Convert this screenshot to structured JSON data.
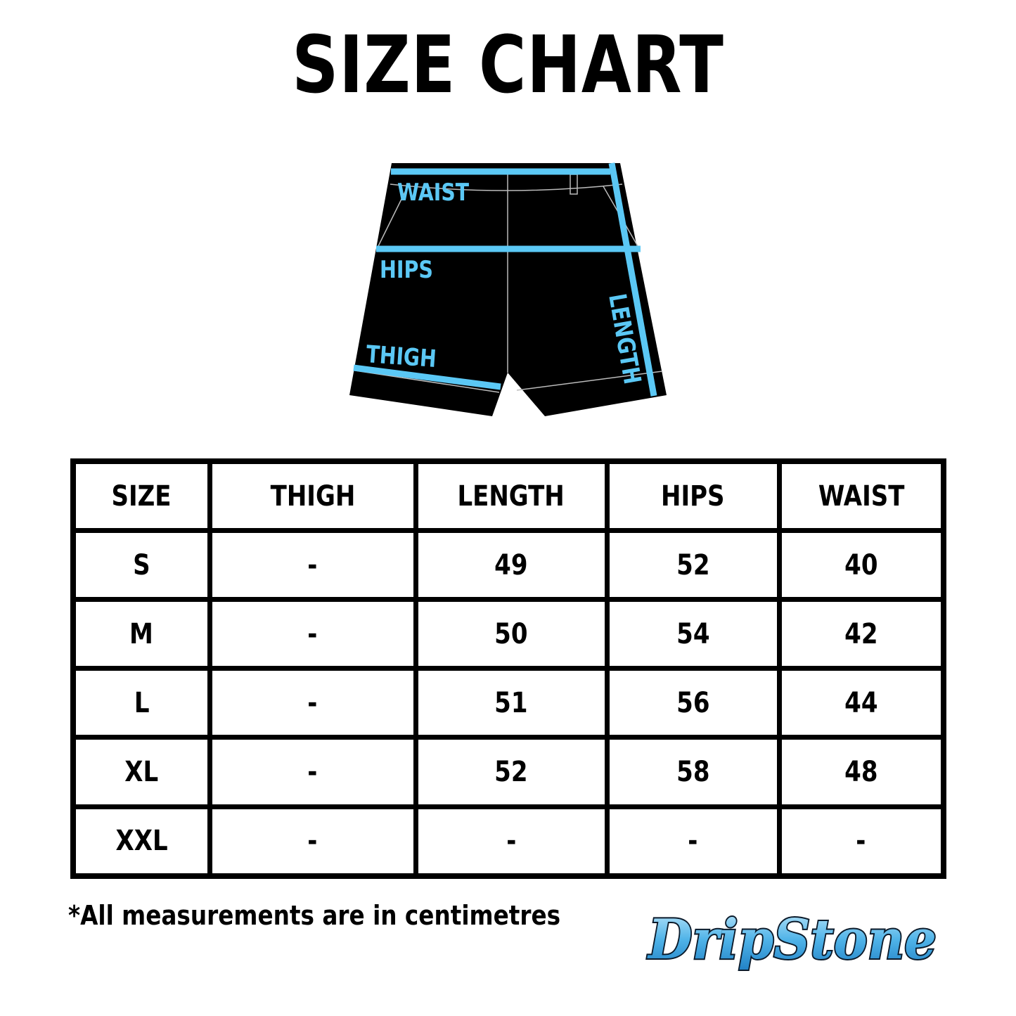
{
  "title": "SIZE CHART",
  "diagram": {
    "labels": {
      "waist": "WAIST",
      "hips": "HIPS",
      "thigh": "THIGH",
      "length": "LENGTH"
    },
    "colors": {
      "garment": "#000000",
      "measure_line": "#5BC8F5"
    }
  },
  "table": {
    "headers": [
      "SIZE",
      "THIGH",
      "LENGTH",
      "HIPS",
      "WAIST"
    ],
    "rows": [
      [
        "S",
        "-",
        "49",
        "52",
        "40"
      ],
      [
        "M",
        "-",
        "50",
        "54",
        "42"
      ],
      [
        "L",
        "-",
        "51",
        "56",
        "44"
      ],
      [
        "XL",
        "-",
        "52",
        "58",
        "48"
      ],
      [
        "XXL",
        "-",
        "-",
        "-",
        "-"
      ]
    ]
  },
  "note": "*All measurements are in centimetres",
  "logo": {
    "text": "DripStone",
    "color": "#4FB3E8"
  }
}
